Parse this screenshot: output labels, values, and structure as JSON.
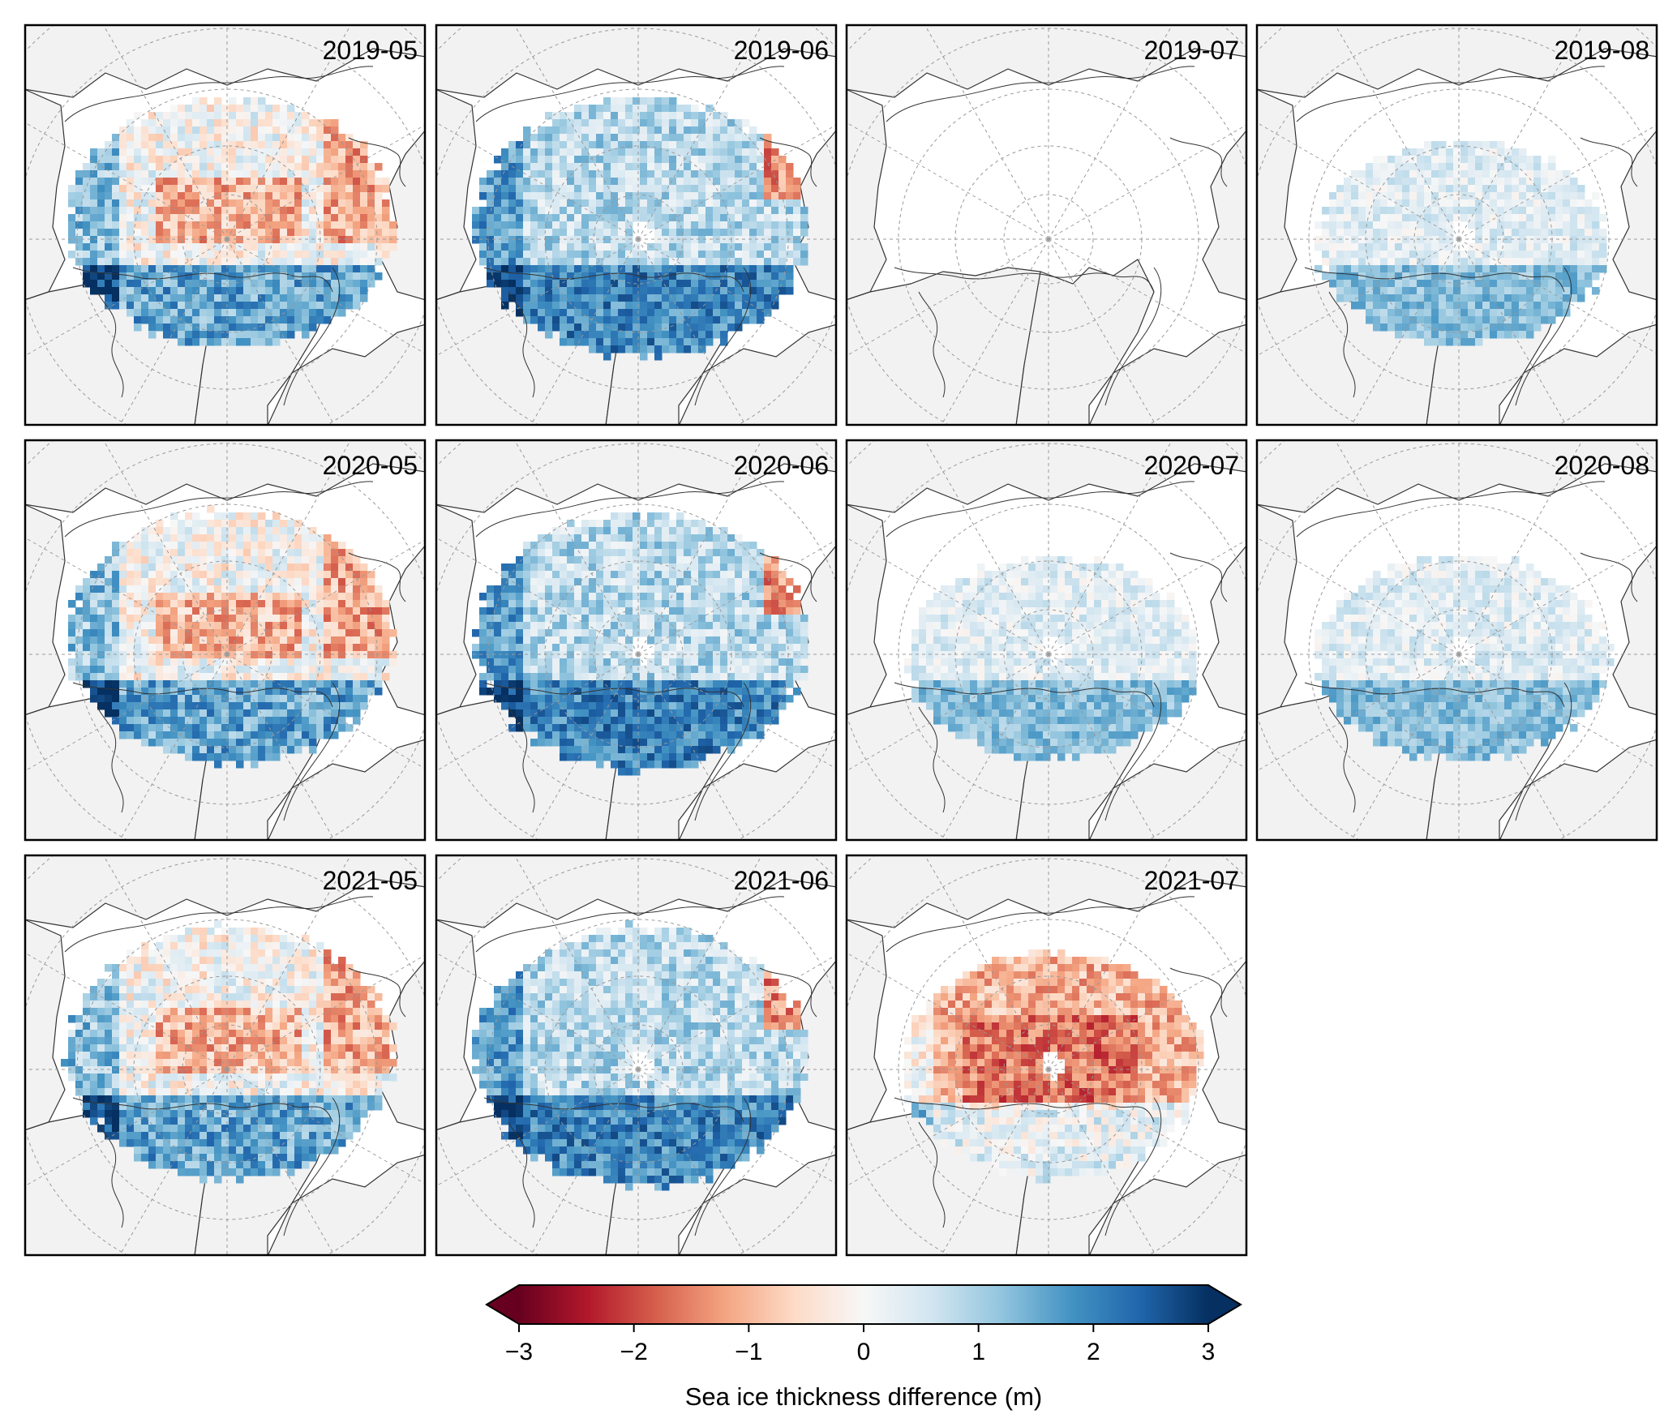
{
  "panels": [
    {
      "label": "2019-05",
      "pattern": "mixed"
    },
    {
      "label": "2019-06",
      "pattern": "thicker"
    },
    {
      "label": "2019-07",
      "pattern": "empty"
    },
    {
      "label": "2019-08",
      "pattern": "faint"
    },
    {
      "label": "2020-05",
      "pattern": "mixed"
    },
    {
      "label": "2020-06",
      "pattern": "thicker"
    },
    {
      "label": "2020-07",
      "pattern": "faint"
    },
    {
      "label": "2020-08",
      "pattern": "faint"
    },
    {
      "label": "2021-05",
      "pattern": "mixed"
    },
    {
      "label": "2021-06",
      "pattern": "thicker"
    },
    {
      "label": "2021-07",
      "pattern": "thinner"
    }
  ],
  "colorbar": {
    "label": "Sea ice thickness difference (m)",
    "range": [
      -3,
      3
    ],
    "extend": "both",
    "ticks": [
      {
        "value": -3,
        "label": "−3"
      },
      {
        "value": -2,
        "label": "−2"
      },
      {
        "value": -1,
        "label": "−1"
      },
      {
        "value": 0,
        "label": "0"
      },
      {
        "value": 1,
        "label": "1"
      },
      {
        "value": 2,
        "label": "2"
      },
      {
        "value": 3,
        "label": "3"
      }
    ],
    "colormap": "RdBu",
    "colors": [
      "#67001f",
      "#b2182b",
      "#d6604d",
      "#f4a582",
      "#fddbc7",
      "#f7f7f7",
      "#d1e5f0",
      "#92c5de",
      "#4393c3",
      "#2166ac",
      "#053061"
    ]
  },
  "style": {
    "land_color": "#f2f2f2",
    "ocean_color": "#ffffff",
    "coast_color": "#333333",
    "grid_color": "#999999"
  }
}
